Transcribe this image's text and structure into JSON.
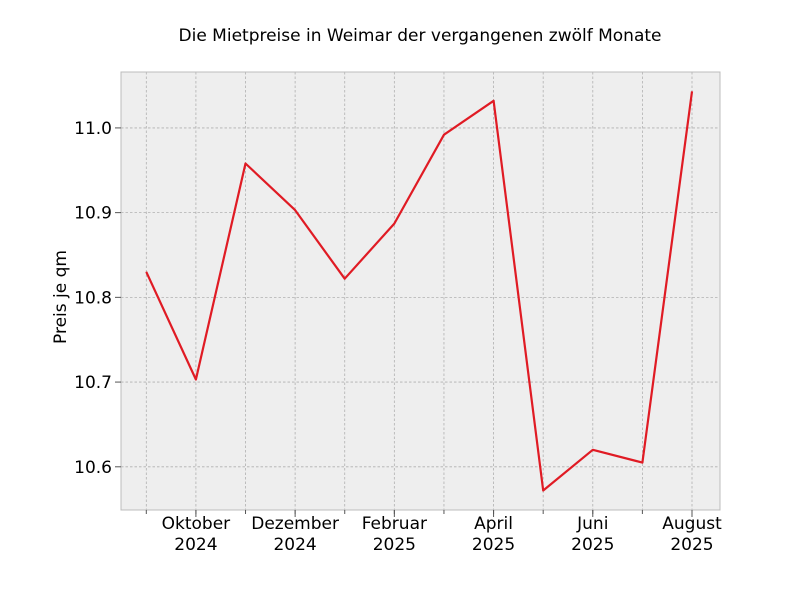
{
  "chart_data": {
    "type": "line",
    "title": "Die Mietpreise in Weimar der vergangenen zwölf Monate",
    "xlabel": "",
    "ylabel": "Preis je qm",
    "x": [
      "2024-09",
      "2024-10",
      "2024-11",
      "2024-12",
      "2025-01",
      "2025-02",
      "2025-03",
      "2025-04",
      "2025-05",
      "2025-06",
      "2025-07",
      "2025-08"
    ],
    "series": [
      {
        "values": [
          10.83,
          10.703,
          10.958,
          10.903,
          10.822,
          10.887,
          10.992,
          11.032,
          10.572,
          10.62,
          10.605,
          11.043
        ]
      }
    ],
    "x_tick_labels": [
      {
        "x": "2024-10",
        "month": "Oktober",
        "year": "2024"
      },
      {
        "x": "2024-12",
        "month": "Dezember",
        "year": "2024"
      },
      {
        "x": "2025-02",
        "month": "Februar",
        "year": "2025"
      },
      {
        "x": "2025-04",
        "month": "April",
        "year": "2025"
      },
      {
        "x": "2025-06",
        "month": "Juni",
        "year": "2025"
      },
      {
        "x": "2025-08",
        "month": "August",
        "year": "2025"
      }
    ],
    "y_ticks": [
      "10.6",
      "10.7",
      "10.8",
      "10.9",
      "11.0"
    ],
    "ylim": [
      10.549,
      11.066
    ],
    "xlim": [
      "2024-08",
      "2025-08"
    ],
    "grid": true,
    "line_color": "#e01b24",
    "plot_background": "#eeeeee",
    "grid_color": "#b0b0b0"
  }
}
